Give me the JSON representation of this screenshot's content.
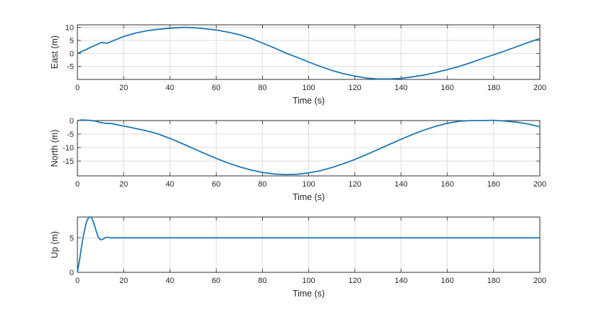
{
  "colors": {
    "series": "#1f77b4",
    "grid": "#dcdcdc",
    "axis": "#262626"
  },
  "chart_data": [
    {
      "type": "line",
      "xlabel": "Time (s)",
      "ylabel": "East (m)",
      "xlim": [
        0,
        200
      ],
      "ylim": [
        -10,
        11
      ],
      "xticks": [
        0,
        20,
        40,
        60,
        80,
        100,
        120,
        140,
        160,
        180,
        200
      ],
      "yticks": [
        -5,
        0,
        5,
        10
      ],
      "grid": true,
      "series": [
        {
          "x": [
            0,
            3,
            6,
            9,
            10,
            11,
            12,
            13,
            15,
            18,
            20,
            25,
            30,
            35,
            40,
            45,
            47,
            50,
            55,
            60,
            65,
            70,
            75,
            80,
            85,
            90,
            95,
            100,
            105,
            110,
            115,
            120,
            125,
            130,
            135,
            140,
            145,
            150,
            155,
            160,
            165,
            170,
            175,
            180,
            185,
            190,
            195,
            200
          ],
          "y": [
            0,
            1.2,
            2.5,
            3.6,
            4.1,
            4.2,
            4.0,
            4.0,
            4.7,
            5.8,
            6.5,
            7.8,
            8.7,
            9.3,
            9.7,
            10.0,
            10.0,
            9.9,
            9.5,
            9.0,
            8.2,
            7.2,
            5.8,
            4.0,
            2.2,
            0.2,
            -1.5,
            -3.3,
            -5.0,
            -6.5,
            -7.8,
            -8.7,
            -9.5,
            -9.8,
            -9.8,
            -9.6,
            -9.0,
            -8.3,
            -7.3,
            -6.2,
            -5.0,
            -3.6,
            -2.0,
            -0.5,
            1.0,
            2.6,
            4.2,
            5.7
          ]
        }
      ]
    },
    {
      "type": "line",
      "xlabel": "Time (s)",
      "ylabel": "North (m)",
      "xlim": [
        0,
        200
      ],
      "ylim": [
        -20.5,
        0
      ],
      "xticks": [
        0,
        20,
        40,
        60,
        80,
        100,
        120,
        140,
        160,
        180,
        200
      ],
      "yticks": [
        -15,
        -10,
        -5,
        0
      ],
      "grid": true,
      "series": [
        {
          "x": [
            0,
            2,
            5,
            8,
            10,
            12,
            15,
            18,
            20,
            25,
            30,
            35,
            40,
            45,
            50,
            55,
            60,
            65,
            70,
            75,
            80,
            85,
            90,
            95,
            100,
            105,
            110,
            115,
            120,
            125,
            130,
            135,
            140,
            145,
            150,
            155,
            160,
            165,
            170,
            175,
            180,
            185,
            190,
            195,
            200
          ],
          "y": [
            0,
            0.2,
            0.1,
            -0.2,
            -0.7,
            -1.0,
            -1.1,
            -1.7,
            -2.0,
            -2.9,
            -3.8,
            -5.0,
            -6.6,
            -8.4,
            -10.3,
            -12.2,
            -14.0,
            -15.7,
            -17.1,
            -18.3,
            -19.2,
            -19.8,
            -20.0,
            -19.9,
            -19.4,
            -18.6,
            -17.4,
            -16.0,
            -14.4,
            -12.6,
            -10.7,
            -8.8,
            -6.9,
            -5.1,
            -3.5,
            -2.1,
            -1.0,
            -0.3,
            0,
            0,
            0.1,
            -0.2,
            -0.6,
            -1.3,
            -2.3
          ]
        }
      ]
    },
    {
      "type": "line",
      "xlabel": "Time (s)",
      "ylabel": "Up (m)",
      "xlim": [
        0,
        200
      ],
      "ylim": [
        0,
        8
      ],
      "xticks": [
        0,
        20,
        40,
        60,
        80,
        100,
        120,
        140,
        160,
        180,
        200
      ],
      "yticks": [
        0,
        5
      ],
      "grid": true,
      "series": [
        {
          "x": [
            0,
            1,
            2,
            3,
            4,
            5,
            6,
            7,
            8,
            9,
            10,
            11,
            12,
            13,
            14,
            16,
            20,
            40,
            60,
            80,
            100,
            120,
            140,
            160,
            180,
            200
          ],
          "y": [
            0,
            2.0,
            4.2,
            6.0,
            7.4,
            8.0,
            8.0,
            7.2,
            6.1,
            5.1,
            4.7,
            4.8,
            5.0,
            5.1,
            5.0,
            5.0,
            5.0,
            5.0,
            5.0,
            5.0,
            5.0,
            5.0,
            5.0,
            5.0,
            5.0,
            5.0
          ]
        }
      ]
    }
  ]
}
